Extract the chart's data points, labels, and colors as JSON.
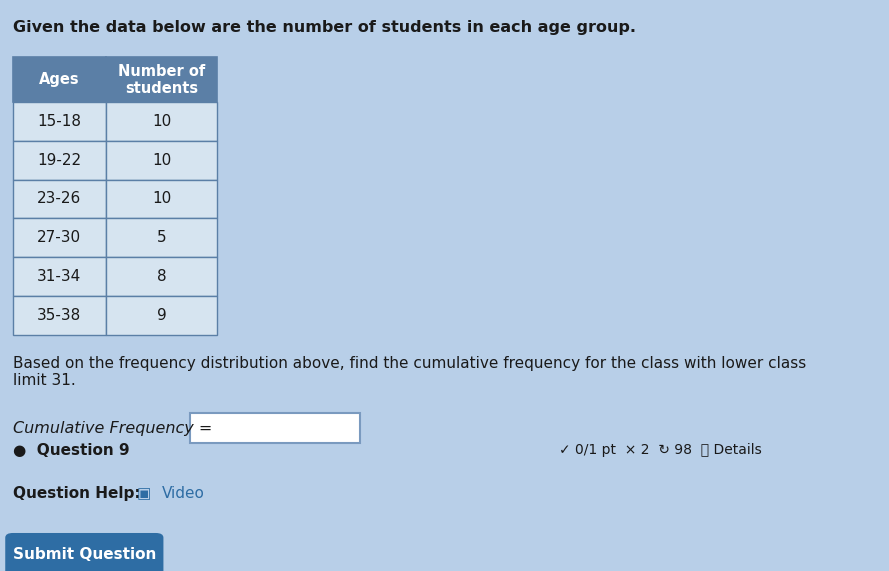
{
  "title": "Given the data below are the number of students in each age group.",
  "table_headers": [
    "Ages",
    "Number of\nstudents"
  ],
  "table_rows": [
    [
      "15-18",
      "10"
    ],
    [
      "19-22",
      "10"
    ],
    [
      "23-26",
      "10"
    ],
    [
      "27-30",
      "5"
    ],
    [
      "31-34",
      "8"
    ],
    [
      "35-38",
      "9"
    ]
  ],
  "question_text": "Based on the frequency distribution above, find the cumulative frequency for the class with lower class\nlimit 31.",
  "cumulative_label": "Cumulative Frequency =",
  "question_help_text": "Question Help:",
  "video_text": "Video",
  "submit_button_text": "Submit Question",
  "submit_button_color": "#2e6da4",
  "bottom_left_text": "Question 9",
  "bottom_right_text": "0/1 pt  × 2  ↗ 98  ⓘ Details",
  "bg_color": "#b8cfe8",
  "table_header_bg": "#5b7fa6",
  "table_header_color": "#ffffff",
  "table_row_bg": "#d6e4f0",
  "table_border_color": "#5b7fa6",
  "text_color": "#1a1a1a",
  "input_box_color": "#ffffff",
  "italic_color": "#1a1a1a"
}
